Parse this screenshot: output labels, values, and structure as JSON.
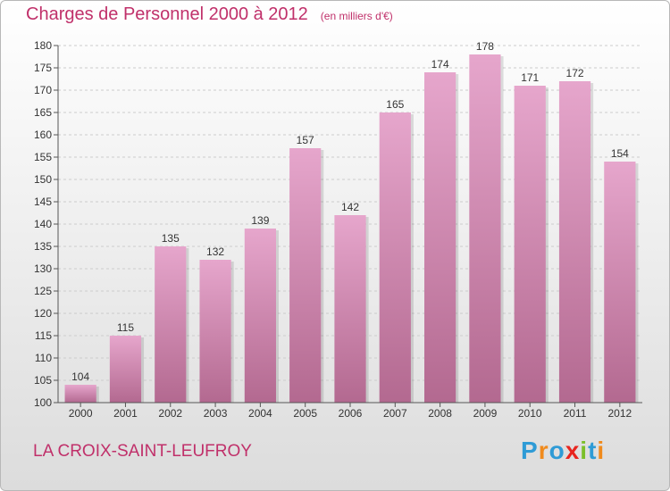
{
  "title": "Charges de Personnel 2000 à 2012",
  "unit": "(en milliers d'€)",
  "place": "LA CROIX-SAINT-LEUFROY",
  "brand": {
    "letters": [
      "P",
      "r",
      "o",
      "x",
      "i",
      "t",
      "i"
    ],
    "colors": [
      "#2e9bd6",
      "#f08a1c",
      "#2e9bd6",
      "#e8251f",
      "#7bbf2a",
      "#2e9bd6",
      "#f08a1c"
    ]
  },
  "colors": {
    "title": "#c0306a",
    "bar_top": "#e6a6cc",
    "bar_bottom": "#b36990",
    "axis": "#555555",
    "grid": "#cccccc"
  },
  "chart_data": {
    "type": "bar",
    "categories": [
      "2000",
      "2001",
      "2002",
      "2003",
      "2004",
      "2005",
      "2006",
      "2007",
      "2008",
      "2009",
      "2010",
      "2011",
      "2012"
    ],
    "values": [
      104,
      115,
      135,
      132,
      139,
      157,
      142,
      165,
      174,
      178,
      171,
      172,
      154
    ],
    "ylim": [
      100,
      180
    ],
    "yticks": [
      100,
      105,
      110,
      115,
      120,
      125,
      130,
      135,
      140,
      145,
      150,
      155,
      160,
      165,
      170,
      175,
      180
    ],
    "grid": "horizontal dashed",
    "legend": "none"
  }
}
